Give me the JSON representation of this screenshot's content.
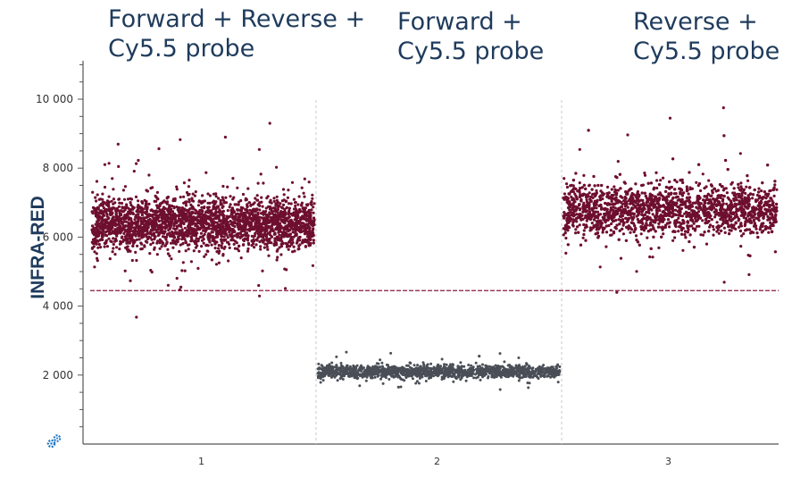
{
  "group_titles": [
    {
      "line1": "Forward + Reverse +",
      "line2": "Cy5.5 probe"
    },
    {
      "line1": "Forward +",
      "line2": "Cy5.5 probe"
    },
    {
      "line1": "Reverse +",
      "line2": "Cy5.5 probe"
    }
  ],
  "chart_data": {
    "type": "scatter",
    "ylabel": "INFRA-RED",
    "xlabel": "",
    "ylim": [
      0,
      11000
    ],
    "yticks": [
      2000,
      4000,
      6000,
      8000,
      10000
    ],
    "ytick_labels": [
      "2 000",
      "4 000",
      "6 000",
      "8 000",
      "10 000"
    ],
    "categories": [
      "1",
      "2",
      "3"
    ],
    "threshold": 4450,
    "grid": false,
    "series": [
      {
        "category": "1",
        "center": 6400,
        "spread": 650,
        "color": "#6e0f2f",
        "status": "positive",
        "outliers": [
          3680,
          4550,
          8900,
          9300
        ]
      },
      {
        "category": "2",
        "center": 2100,
        "spread": 160,
        "color": "#4a4f57",
        "status": "negative",
        "outliers": [
          1650,
          2550
        ]
      },
      {
        "category": "3",
        "center": 6800,
        "spread": 650,
        "color": "#6e0f2f",
        "status": "positive",
        "outliers": [
          4400,
          9450,
          9750
        ]
      }
    ],
    "threshold_color": "#8a1a3c"
  },
  "icons": {
    "settings": "gear-icon"
  }
}
